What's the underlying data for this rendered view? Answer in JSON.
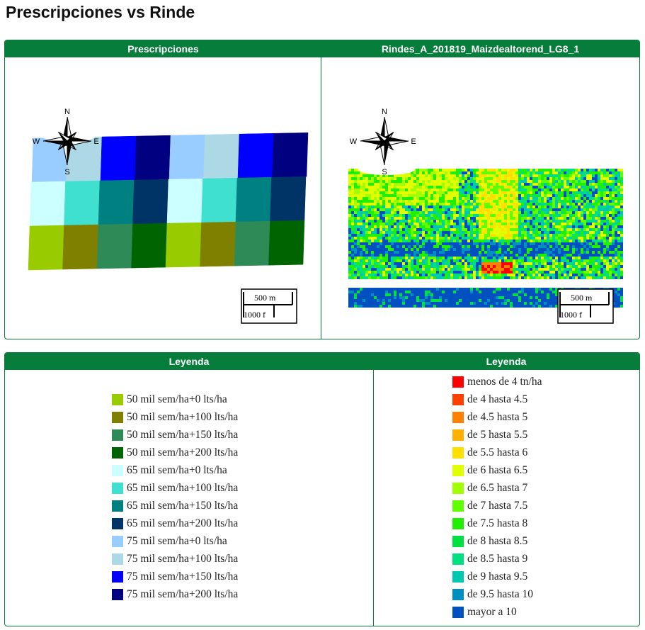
{
  "title": "Prescripciones vs Rinde",
  "maps": [
    {
      "header": "Prescripciones",
      "compass": {
        "n": "N",
        "w": "W",
        "e": "E",
        "s": "S"
      },
      "scale": {
        "metric": "500 m",
        "imperial": "1000 f"
      }
    },
    {
      "header": "Rindes_A_201819_Maizdealtorend_LG8_1",
      "compass": {
        "n": "N",
        "w": "W",
        "e": "E",
        "s": "S"
      },
      "scale": {
        "metric": "500 m",
        "imperial": "1000 f"
      }
    }
  ],
  "legends": [
    {
      "header": "Leyenda",
      "items": [
        {
          "label": "50 mil sem/ha+0 lts/ha",
          "color": "#99cc00"
        },
        {
          "label": "50 mil sem/ha+100 lts/ha",
          "color": "#808000"
        },
        {
          "label": "50 mil sem/ha+150 lts/ha",
          "color": "#2e8b57"
        },
        {
          "label": "50 mil sem/ha+200 lts/ha",
          "color": "#006400"
        },
        {
          "label": "65 mil sem/ha+0 lts/ha",
          "color": "#ccffff"
        },
        {
          "label": "65 mil sem/ha+100 lts/ha",
          "color": "#40e0d0"
        },
        {
          "label": "65 mil sem/ha+150 lts/ha",
          "color": "#008080"
        },
        {
          "label": "65 mil sem/ha+200 lts/ha",
          "color": "#003366"
        },
        {
          "label": "75 mil sem/ha+0 lts/ha",
          "color": "#99ccff"
        },
        {
          "label": "75 mil sem/ha+100 lts/ha",
          "color": "#add8e6"
        },
        {
          "label": "75 mil sem/ha+150 lts/ha",
          "color": "#0000ff"
        },
        {
          "label": "75 mil sem/ha+200 lts/ha",
          "color": "#000080"
        }
      ]
    },
    {
      "header": "Leyenda",
      "items": [
        {
          "label": "menos de 4 tn/ha",
          "color": "#ff0000"
        },
        {
          "label": "de 4 hasta 4.5",
          "color": "#ff4000"
        },
        {
          "label": "de 4.5 hasta 5",
          "color": "#ff8000"
        },
        {
          "label": "de 5 hasta 5.5",
          "color": "#ffb000"
        },
        {
          "label": "de 5.5 hasta 6",
          "color": "#ffe000"
        },
        {
          "label": "de 6 hasta 6.5",
          "color": "#e0ff00"
        },
        {
          "label": "de 6.5 hasta 7",
          "color": "#a0ff00"
        },
        {
          "label": "de 7 hasta 7.5",
          "color": "#60ff00"
        },
        {
          "label": "de 7.5 hasta 8",
          "color": "#20f000"
        },
        {
          "label": "de 8 hasta 8.5",
          "color": "#00e040"
        },
        {
          "label": "de 8.5 hasta 9",
          "color": "#00e080"
        },
        {
          "label": "de 9 hasta 9.5",
          "color": "#00c8b0"
        },
        {
          "label": "de 9.5 hasta 10",
          "color": "#0090c0"
        },
        {
          "label": "mayor a 10",
          "color": "#0050c0"
        }
      ]
    }
  ]
}
